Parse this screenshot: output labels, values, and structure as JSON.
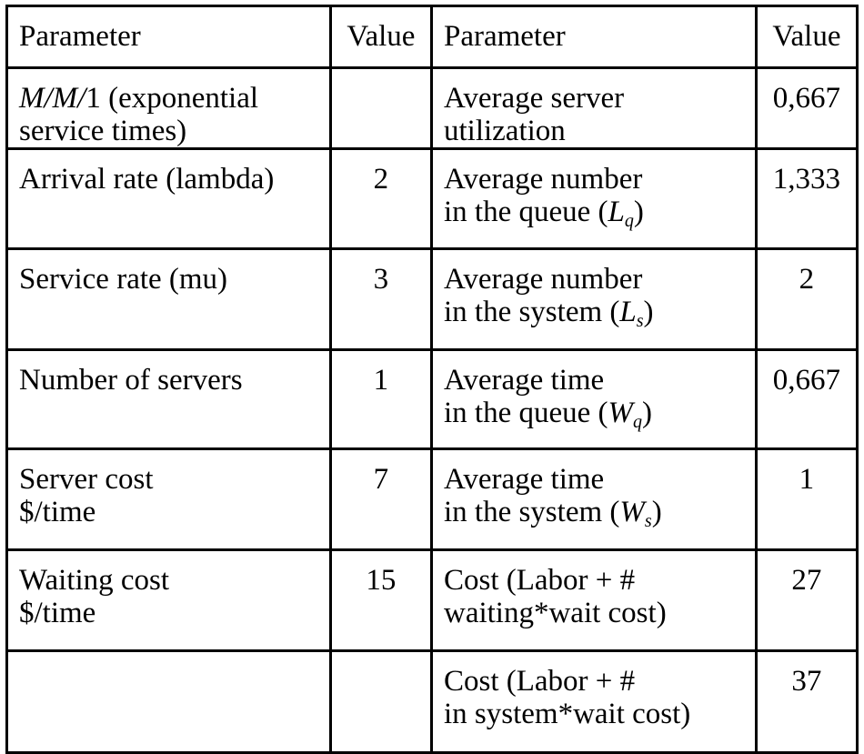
{
  "headers": {
    "param_left": "Parameter",
    "value_left": "Value",
    "param_right": "Parameter",
    "value_right": "Value"
  },
  "left_rows": [
    {
      "label_line1_italic": "M/M/",
      "label_line1_rest": "1 (exponential",
      "label_line2": "service times)",
      "value": ""
    },
    {
      "label_line1": "Arrival rate (lambda)",
      "label_line2": "",
      "value": "2"
    },
    {
      "label_line1": "Service rate (mu)",
      "label_line2": "",
      "value": "3"
    },
    {
      "label_line1": "Number of servers",
      "label_line2": "",
      "value": "1"
    },
    {
      "label_line1": "Server cost",
      "label_line2": "$/time",
      "value": "7"
    },
    {
      "label_line1": "Waiting cost",
      "label_line2": "$/time",
      "value": "15"
    },
    {
      "label_line1": "",
      "label_line2": "",
      "value": ""
    }
  ],
  "right_rows": [
    {
      "line1": "Average server",
      "line2_text": "utilization",
      "symbol": "",
      "subscript": "",
      "close": "",
      "value": "0,667"
    },
    {
      "line1": "Average number",
      "line2_text": "in the queue (",
      "symbol": "L",
      "subscript": "q",
      "close": ")",
      "value": "1,333"
    },
    {
      "line1": "Average number",
      "line2_text": "in the system (",
      "symbol": "L",
      "subscript": "s",
      "close": ")",
      "value": "2"
    },
    {
      "line1": "Average time",
      "line2_text": "in the queue (",
      "symbol": "W",
      "subscript": "q",
      "close": ")",
      "value": "0,667"
    },
    {
      "line1": "Average time",
      "line2_text": "in the system (",
      "symbol": "W",
      "subscript": "s",
      "close": ")",
      "value": "1"
    },
    {
      "line1": "Cost (Labor + #",
      "line2_text": "waiting*wait cost)",
      "symbol": "",
      "subscript": "",
      "close": "",
      "value": "27"
    },
    {
      "line1": "Cost (Labor + #",
      "line2_text": "in system*wait cost)",
      "symbol": "",
      "subscript": "",
      "close": "",
      "value": "37"
    }
  ]
}
